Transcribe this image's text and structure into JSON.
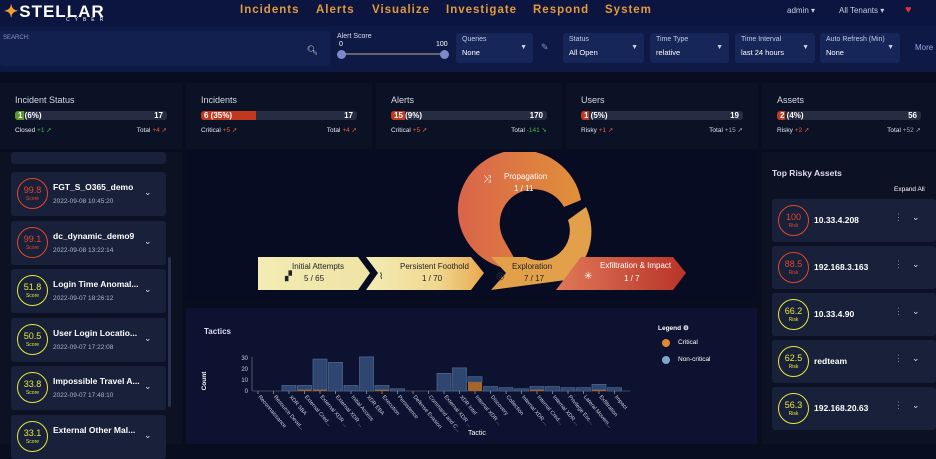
{
  "nav": {
    "logo": "STELLAR",
    "logo_sub": "CYBER",
    "items": [
      "Incidents",
      "Alerts",
      "Visualize",
      "Investigate",
      "Respond",
      "System"
    ],
    "user": "admin",
    "tenants": "All Tenants",
    "health_icon": "heartbeat-icon"
  },
  "filters": {
    "search_label": "SEARCH:",
    "search_value": "",
    "alert_score": {
      "label": "Alert Score",
      "min": "0",
      "max": "100"
    },
    "selects": [
      {
        "label": "Queries",
        "value": "None"
      },
      {
        "label": "Status",
        "value": "All Open"
      },
      {
        "label": "Time Type",
        "value": "relative"
      },
      {
        "label": "Time Interval",
        "value": "last 24 hours"
      },
      {
        "label": "Auto Refresh (Min)",
        "value": "None"
      }
    ],
    "more": "More"
  },
  "cards": [
    {
      "title": "Incident Status",
      "bar_label": "1 (6%)",
      "pct": 6,
      "color": "#5a9a2a",
      "total": "17",
      "left_label": "Closed",
      "left_delta": "+1",
      "right_label": "Total",
      "right_delta": "+4"
    },
    {
      "title": "Incidents",
      "bar_label": "6 (35%)",
      "pct": 35,
      "color": "#c0391e",
      "total": "17",
      "left_label": "Critical",
      "left_delta": "+5",
      "right_label": "Total",
      "right_delta": "+4"
    },
    {
      "title": "Alerts",
      "bar_label": "15 (9%)",
      "pct": 9,
      "color": "#c0391e",
      "total": "170",
      "left_label": "Critical",
      "left_delta": "+5",
      "right_label": "Total",
      "right_delta": "-141"
    },
    {
      "title": "Users",
      "bar_label": "1 (5%)",
      "pct": 5,
      "color": "#c0391e",
      "total": "19",
      "left_label": "Risky",
      "left_delta": "+1",
      "right_label": "Total",
      "right_delta": "+15"
    },
    {
      "title": "Assets",
      "bar_label": "2 (4%)",
      "pct": 4,
      "color": "#c0391e",
      "total": "56",
      "left_label": "Risky",
      "left_delta": "+2",
      "right_label": "Total",
      "right_delta": "+52"
    }
  ],
  "incidents": [
    {
      "score": "99.8",
      "score_label": "Score",
      "name": "FGT_S_O365_demo",
      "time": "2022-09-08 10:45:20",
      "level": "red"
    },
    {
      "score": "99.1",
      "score_label": "Score",
      "name": "dc_dynamic_demo9",
      "time": "2022-09-08 13:22:14",
      "level": "red"
    },
    {
      "score": "51.8",
      "score_label": "Score",
      "name": "Login Time Anomal...",
      "time": "2022-09-07 18:26:12",
      "level": "yel"
    },
    {
      "score": "50.5",
      "score_label": "Score",
      "name": "User Login Locatio...",
      "time": "2022-09-07 17:22:08",
      "level": "yel"
    },
    {
      "score": "33.8",
      "score_label": "Score",
      "name": "Impossible Travel A...",
      "time": "2022-09-07 17:48:10",
      "level": "yel"
    },
    {
      "score": "33.1",
      "score_label": "Score",
      "name": "External Other Mal...",
      "time": "",
      "level": "yel"
    }
  ],
  "killchain": {
    "stages": [
      {
        "name": "Initial Attempts",
        "value": "5 / 65",
        "icon": "binoculars-icon"
      },
      {
        "name": "Persistent Foothold",
        "value": "1 / 70",
        "icon": "foothold-icon"
      },
      {
        "name": "Exploration",
        "value": "7 / 17",
        "icon": "exploration-icon"
      },
      {
        "name": "Propagation",
        "value": "1 / 11",
        "icon": "shuffle-icon"
      },
      {
        "name": "Exfiltration & Impact",
        "value": "1 / 7",
        "icon": "burst-icon"
      }
    ]
  },
  "assets": {
    "title": "Top Risky Assets",
    "expand_all": "Expand All",
    "items": [
      {
        "score": "100",
        "score_label": "Risk",
        "name": "10.33.4.208",
        "level": "red"
      },
      {
        "score": "88.5",
        "score_label": "Risk",
        "name": "192.168.3.163",
        "level": "red"
      },
      {
        "score": "66.2",
        "score_label": "Risk",
        "name": "10.33.4.90",
        "level": "yel"
      },
      {
        "score": "62.5",
        "score_label": "Risk",
        "name": "redteam",
        "level": "yel"
      },
      {
        "score": "56.3",
        "score_label": "Risk",
        "name": "192.168.20.63",
        "level": "yel"
      }
    ]
  },
  "chart_data": {
    "type": "bar",
    "title": "Tactics",
    "xlabel": "Tactic",
    "ylabel": "Count",
    "ylim": [
      0,
      30
    ],
    "yticks": [
      "0",
      "10",
      "20",
      "30"
    ],
    "legend": {
      "title": "Legend",
      "placement": "right",
      "entries": [
        {
          "name": "Critical",
          "color": "#e08a30"
        },
        {
          "name": "Non-critical",
          "color": "#7fa8c8"
        }
      ]
    },
    "categories": [
      "Reconnaissance",
      "Resource Devel...",
      "XDR SBA",
      "External Cred...",
      "External XDR ...",
      "External XDR ...",
      "Initial Access",
      "XDR EBA",
      "Execution",
      "Persistence",
      "Defense Evasion",
      "Command and C...",
      "External XDR ...",
      "XDR Intel",
      "Internal XDR ...",
      "Discovery",
      "Collection",
      "Internal XDR ...",
      "Internal Cred...",
      "Internal XDR ...",
      "Privilege Esc...",
      "Lateral Movem...",
      "Exfiltration",
      "Impact"
    ],
    "series": [
      {
        "name": "Critical",
        "values": [
          0,
          0,
          0,
          1,
          1,
          0,
          0,
          0,
          1,
          0,
          0,
          0,
          0,
          0,
          8,
          0,
          0,
          0,
          1,
          0,
          0,
          0,
          1,
          0
        ]
      },
      {
        "name": "Non-critical",
        "values": [
          0,
          0,
          5,
          4,
          28,
          26,
          5,
          31,
          4,
          2,
          0,
          0,
          16,
          21,
          5,
          4,
          3,
          2,
          3,
          4,
          3,
          3,
          5,
          3
        ]
      }
    ]
  }
}
